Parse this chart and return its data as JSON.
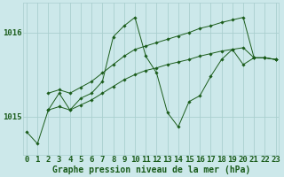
{
  "bg_color": "#cce8ea",
  "grid_color": "#aacfcf",
  "line_color": "#1a5c1a",
  "xlim": [
    -0.3,
    23.3
  ],
  "ylim": [
    1014.55,
    1016.35
  ],
  "yticks": [
    1015,
    1016
  ],
  "xticks": [
    0,
    1,
    2,
    3,
    4,
    5,
    6,
    7,
    8,
    9,
    10,
    11,
    12,
    13,
    14,
    15,
    16,
    17,
    18,
    19,
    20,
    21,
    22,
    23
  ],
  "xlabel": "Graphe pression niveau de la mer (hPa)",
  "series_main": [
    [
      0,
      1014.82
    ],
    [
      1,
      1014.68
    ],
    [
      2,
      1015.08
    ],
    [
      3,
      1015.28
    ],
    [
      4,
      1015.08
    ],
    [
      5,
      1015.22
    ],
    [
      6,
      1015.28
    ],
    [
      7,
      1015.42
    ],
    [
      8,
      1015.95
    ],
    [
      9,
      1016.08
    ],
    [
      10,
      1016.18
    ],
    [
      11,
      1015.72
    ],
    [
      12,
      1015.52
    ],
    [
      13,
      1015.05
    ],
    [
      14,
      1014.88
    ],
    [
      15,
      1015.18
    ],
    [
      16,
      1015.25
    ],
    [
      17,
      1015.48
    ],
    [
      18,
      1015.68
    ],
    [
      19,
      1015.8
    ],
    [
      20,
      1015.62
    ],
    [
      21,
      1015.7
    ],
    [
      22,
      1015.7
    ],
    [
      23,
      1015.68
    ]
  ],
  "series_low": [
    [
      2,
      1015.08
    ],
    [
      3,
      1015.12
    ],
    [
      4,
      1015.08
    ],
    [
      5,
      1015.14
    ],
    [
      6,
      1015.2
    ],
    [
      7,
      1015.28
    ],
    [
      8,
      1015.36
    ],
    [
      9,
      1015.44
    ],
    [
      10,
      1015.5
    ],
    [
      11,
      1015.55
    ],
    [
      12,
      1015.58
    ],
    [
      13,
      1015.62
    ],
    [
      14,
      1015.65
    ],
    [
      15,
      1015.68
    ],
    [
      16,
      1015.72
    ],
    [
      17,
      1015.75
    ],
    [
      18,
      1015.78
    ],
    [
      19,
      1015.8
    ],
    [
      20,
      1015.82
    ],
    [
      21,
      1015.7
    ],
    [
      22,
      1015.7
    ],
    [
      23,
      1015.68
    ]
  ],
  "series_up": [
    [
      2,
      1015.28
    ],
    [
      3,
      1015.32
    ],
    [
      4,
      1015.28
    ],
    [
      5,
      1015.35
    ],
    [
      6,
      1015.42
    ],
    [
      7,
      1015.52
    ],
    [
      8,
      1015.62
    ],
    [
      9,
      1015.72
    ],
    [
      10,
      1015.8
    ],
    [
      11,
      1015.84
    ],
    [
      12,
      1015.88
    ],
    [
      13,
      1015.92
    ],
    [
      14,
      1015.96
    ],
    [
      15,
      1016.0
    ],
    [
      16,
      1016.05
    ],
    [
      17,
      1016.08
    ],
    [
      18,
      1016.12
    ],
    [
      19,
      1016.15
    ],
    [
      20,
      1016.18
    ],
    [
      21,
      1015.7
    ],
    [
      22,
      1015.7
    ],
    [
      23,
      1015.68
    ]
  ],
  "title_fontsize": 7,
  "tick_fontsize": 6.5
}
